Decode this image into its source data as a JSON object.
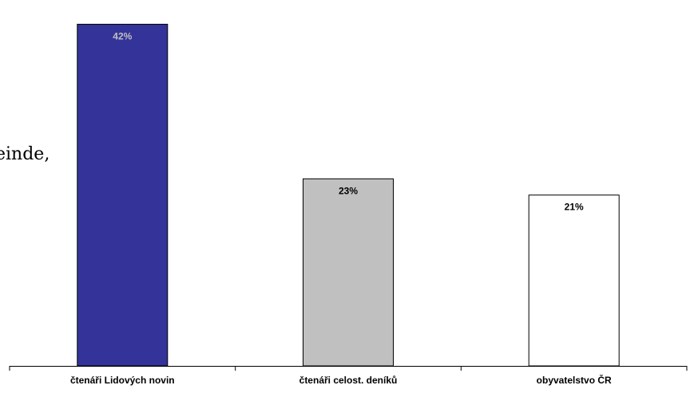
{
  "side_text": "einde,",
  "chart_data": {
    "type": "bar",
    "categories": [
      "čtenáři Lidových novin",
      "čtenáři celost. deníků",
      "obyvatelstvo ČR"
    ],
    "values": [
      42,
      23,
      21
    ],
    "data_labels": [
      "42%",
      "23%",
      "21%"
    ],
    "ylim": [
      0,
      44
    ],
    "grid": false,
    "legend": "none",
    "bar_colors": [
      "#333399",
      "#c0c0c0",
      "#ffffff"
    ],
    "label_colors": [
      "#c0c0c0",
      "#000000",
      "#000000"
    ]
  }
}
